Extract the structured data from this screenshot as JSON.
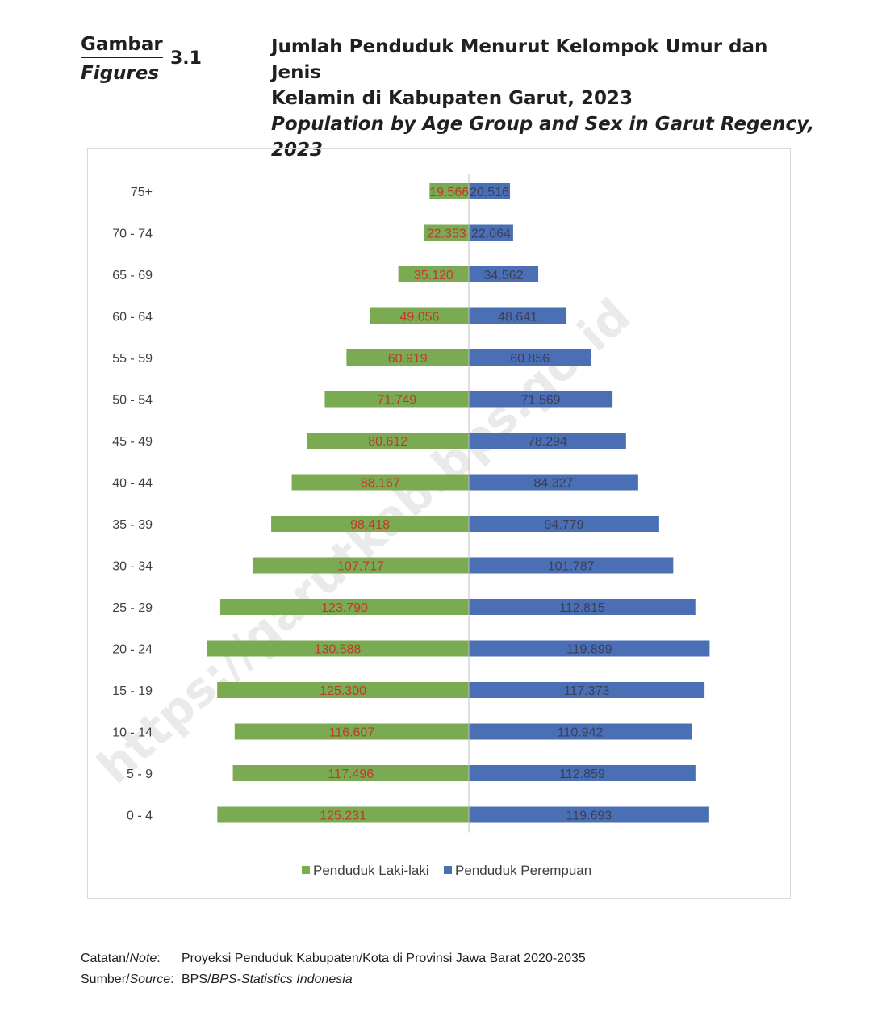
{
  "header": {
    "label_id": "Gambar",
    "label_en": "Figures",
    "number": "3.1",
    "title_id_line1": "Jumlah Penduduk Menurut Kelompok Umur dan Jenis",
    "title_id_line2": "Kelamin di Kabupaten Garut, 2023",
    "title_en": "Population by Age Group and Sex in Garut Regency, 2023"
  },
  "watermark": "https://garutkab.bps.go.id",
  "chart_data": {
    "type": "bar",
    "orientation": "horizontal-pyramid",
    "categories": [
      "0 - 4",
      "5 - 9",
      "10 - 14",
      "15 - 19",
      "20 - 24",
      "25 - 29",
      "30 - 34",
      "35 - 39",
      "40 - 44",
      "45 - 49",
      "50 - 54",
      "55 - 59",
      "60 - 64",
      "65 - 69",
      "70 - 74",
      "75+"
    ],
    "series": [
      {
        "name": "Penduduk Laki-laki",
        "color": "#7aab52",
        "label_color": "#c0392b",
        "values": [
          125231,
          117496,
          116607,
          125300,
          130588,
          123790,
          107717,
          98418,
          88167,
          80612,
          71749,
          60919,
          49056,
          35120,
          22353,
          19566
        ],
        "labels": [
          "125.231",
          "117.496",
          "116.607",
          "125.300",
          "130.588",
          "123.790",
          "107.717",
          "98.418",
          "88.167",
          "80.612",
          "71.749",
          "60.919",
          "49.056",
          "35.120",
          "22.353",
          "19.566"
        ]
      },
      {
        "name": "Penduduk Perempuan",
        "color": "#4a6fb5",
        "label_color": "#3b3f58",
        "values": [
          119693,
          112859,
          110942,
          117373,
          119899,
          112815,
          101787,
          94779,
          84327,
          78294,
          71569,
          60856,
          48641,
          34562,
          22064,
          20516
        ],
        "labels": [
          "119.693",
          "112.859",
          "110.942",
          "117.373",
          "119.899",
          "112.815",
          "101.787",
          "94.779",
          "84.327",
          "78.294",
          "71.569",
          "60.856",
          "48.641",
          "34.562",
          "22.064",
          "20.516"
        ]
      }
    ],
    "legend_position": "bottom",
    "max_value": 130588
  },
  "notes": {
    "note_key_a": "Catatan/",
    "note_key_b": "Note",
    "note_value": "Proyeksi Penduduk Kabupaten/Kota di Provinsi Jawa Barat 2020-2035",
    "source_key_a": "Sumber/",
    "source_key_b": "Source",
    "source_value_a": "BPS/",
    "source_value_b": "BPS-Statistics Indonesia"
  }
}
